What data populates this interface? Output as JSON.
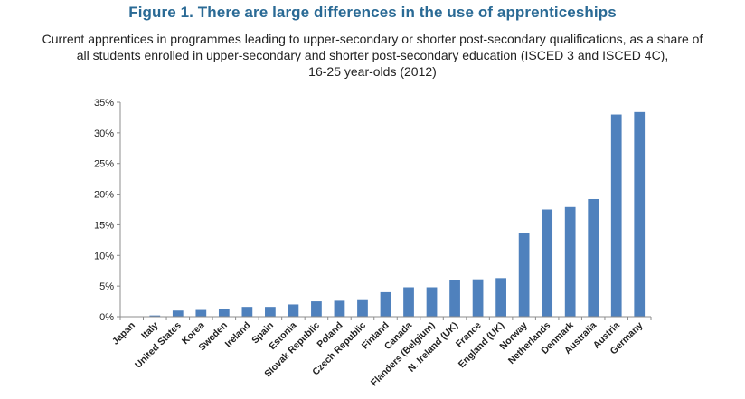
{
  "figure_title": "Figure 1. There are large differences in the use of apprenticeships",
  "chart_data": {
    "type": "bar",
    "title": "Current apprentices in programmes leading to upper-secondary or shorter post-secondary qualifications, as a share of all students enrolled in upper-secondary and shorter post-secondary education (ISCED 3 and ISCED 4C), 16-25 year-olds (2012)",
    "title_lines": [
      "Current apprentices in programmes leading to upper-secondary or shorter post-secondary qualifications, as a share of",
      "all students enrolled in upper-secondary and shorter post-secondary education (ISCED 3 and ISCED 4C),",
      "16-25 year-olds (2012)"
    ],
    "xlabel": "",
    "ylabel": "",
    "ylim": [
      0,
      35
    ],
    "yticks": [
      0,
      5,
      10,
      15,
      20,
      25,
      30,
      35
    ],
    "ytick_labels": [
      "0%",
      "5%",
      "10%",
      "15%",
      "20%",
      "25%",
      "30%",
      "35%"
    ],
    "grid": false,
    "bar_color": "#4f81bd",
    "categories": [
      "Japan",
      "Italy",
      "United States",
      "Korea",
      "Sweden",
      "Ireland",
      "Spain",
      "Estonia",
      "Slovak Republic",
      "Poland",
      "Czech Republic",
      "Finland",
      "Canada",
      "Flanders (Belgium)",
      "N. Ireland (UK)",
      "France",
      "England (UK)",
      "Norway",
      "Netherlands",
      "Denmark",
      "Australia",
      "Austria",
      "Germany"
    ],
    "values": [
      0.0,
      0.2,
      1.0,
      1.1,
      1.2,
      1.6,
      1.6,
      2.0,
      2.5,
      2.6,
      2.7,
      4.0,
      4.8,
      4.8,
      6.0,
      6.1,
      6.3,
      13.7,
      17.5,
      17.9,
      19.2,
      33.0,
      33.4
    ]
  }
}
